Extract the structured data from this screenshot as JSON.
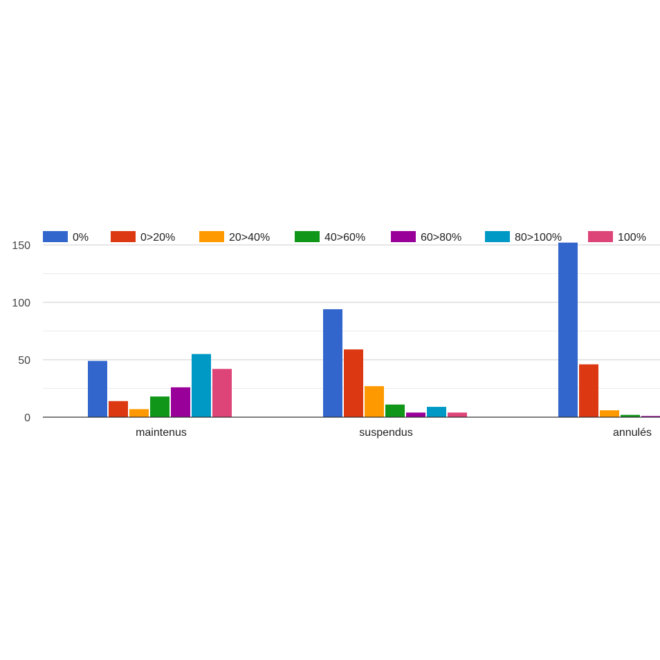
{
  "chart_data": {
    "type": "bar",
    "categories": [
      "maintenus",
      "suspendus",
      "annulés"
    ],
    "series": [
      {
        "name": "0%",
        "color": "#3366cc",
        "values": [
          49,
          94,
          152
        ]
      },
      {
        "name": "0>20%",
        "color": "#dc3912",
        "values": [
          14,
          59,
          46
        ]
      },
      {
        "name": "20>40%",
        "color": "#ff9900",
        "values": [
          7,
          27,
          6
        ]
      },
      {
        "name": "40>60%",
        "color": "#109618",
        "values": [
          18,
          11,
          2
        ]
      },
      {
        "name": "60>80%",
        "color": "#990099",
        "values": [
          26,
          4,
          1
        ]
      },
      {
        "name": "80>100%",
        "color": "#0099c6",
        "values": [
          55,
          9,
          0
        ]
      },
      {
        "name": "100%",
        "color": "#dd4477",
        "values": [
          42,
          4,
          0
        ]
      }
    ],
    "yticks": [
      0,
      50,
      100,
      150
    ],
    "ylim": [
      0,
      150
    ],
    "grid": true,
    "legend_position": "top"
  }
}
